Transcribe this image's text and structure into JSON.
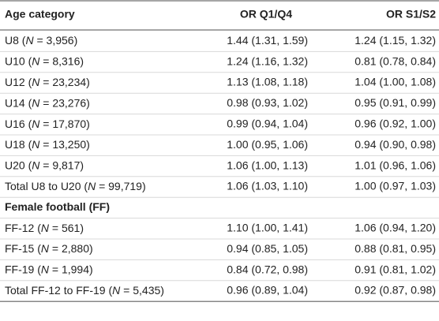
{
  "table": {
    "header": [
      "Age category",
      "OR Q1/Q4",
      "OR S1/S2"
    ],
    "rows": [
      {
        "label": [
          "U8 (",
          "N",
          " = 3,956)"
        ],
        "cells": [
          "1.44 (1.31, 1.59)",
          "1.24 (1.15, 1.32)"
        ]
      },
      {
        "label": [
          "U10 (",
          "N",
          " = 8,316)"
        ],
        "cells": [
          "1.24 (1.16, 1.32)",
          "0.81 (0.78, 0.84)"
        ]
      },
      {
        "label": [
          "U12 (",
          "N",
          " = 23,234)"
        ],
        "cells": [
          "1.13 (1.08, 1.18)",
          "1.04 (1.00, 1.08)"
        ]
      },
      {
        "label": [
          "U14 (",
          "N",
          " = 23,276)"
        ],
        "cells": [
          "0.98 (0.93, 1.02)",
          "0.95 (0.91, 0.99)"
        ]
      },
      {
        "label": [
          "U16 (",
          "N",
          " = 17,870)"
        ],
        "cells": [
          "0.99 (0.94, 1.04)",
          "0.96 (0.92, 1.00)"
        ]
      },
      {
        "label": [
          "U18 (",
          "N",
          " = 13,250)"
        ],
        "cells": [
          "1.00 (0.95, 1.06)",
          "0.94 (0.90, 0.98)"
        ]
      },
      {
        "label": [
          "U20 (",
          "N",
          " = 9,817)"
        ],
        "cells": [
          "1.06 (1.00, 1.13)",
          "1.01 (0.96, 1.06)"
        ]
      },
      {
        "label": [
          "Total U8 to U20 (",
          "N",
          " = 99,719)"
        ],
        "cells": [
          "1.06 (1.03, 1.10)",
          "1.00 (0.97, 1.03)"
        ]
      },
      {
        "section": "Female football (FF)"
      },
      {
        "label": [
          "FF-12 (",
          "N",
          " = 561)"
        ],
        "cells": [
          "1.10 (1.00, 1.41)",
          "1.06 (0.94, 1.20)"
        ]
      },
      {
        "label": [
          "FF-15 (",
          "N",
          " = 2,880)"
        ],
        "cells": [
          "0.94 (0.85, 1.05)",
          "0.88 (0.81, 0.95)"
        ]
      },
      {
        "label": [
          "FF-19 (",
          "N",
          " = 1,994)"
        ],
        "cells": [
          "0.84 (0.72, 0.98)",
          "0.91 (0.81, 1.02)"
        ]
      },
      {
        "label": [
          "Total FF-12 to FF-19 (",
          "N",
          " = 5,435)"
        ],
        "cells": [
          "0.96 (0.89, 1.04)",
          "0.92 (0.87, 0.98)"
        ]
      }
    ]
  }
}
